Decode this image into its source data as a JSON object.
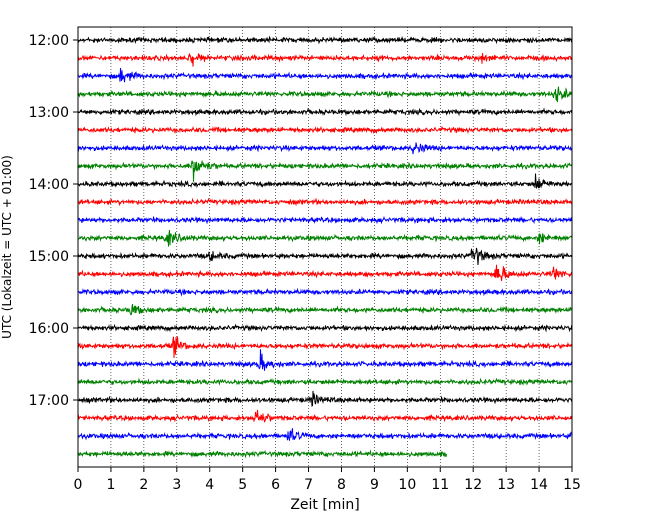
{
  "chart_data": {
    "type": "line",
    "title": "",
    "xlabel": "Zeit  [min]",
    "ylabel": "UTC (Lokalzeit = UTC + 01:00)",
    "xlim": [
      0,
      15
    ],
    "x_ticks": [
      "0",
      "1",
      "2",
      "3",
      "4",
      "5",
      "6",
      "7",
      "8",
      "9",
      "10",
      "11",
      "12",
      "13",
      "14",
      "15"
    ],
    "y_tick_labels": [
      "12:00",
      "13:00",
      "14:00",
      "15:00",
      "16:00",
      "17:00"
    ],
    "grid": "vertical dotted lines at every minute",
    "legend": "none",
    "trace_interval_minutes": 15,
    "trace_colors": [
      "#000000",
      "#ff0000",
      "#0000ff",
      "#008000"
    ],
    "traces": [
      {
        "start": "12:00",
        "color": "#000000",
        "end_min": 15,
        "events": []
      },
      {
        "start": "12:15",
        "color": "#ff0000",
        "end_min": 15,
        "events": [
          [
            3.4,
            7
          ],
          [
            12.2,
            4
          ]
        ]
      },
      {
        "start": "12:30",
        "color": "#0000ff",
        "end_min": 15,
        "events": [
          [
            1.3,
            8
          ]
        ]
      },
      {
        "start": "12:45",
        "color": "#008000",
        "end_min": 15,
        "events": [
          [
            14.5,
            9
          ]
        ]
      },
      {
        "start": "13:00",
        "color": "#000000",
        "end_min": 15,
        "events": []
      },
      {
        "start": "13:15",
        "color": "#ff0000",
        "end_min": 15,
        "events": []
      },
      {
        "start": "13:30",
        "color": "#0000ff",
        "end_min": 15,
        "events": [
          [
            10.2,
            7
          ]
        ]
      },
      {
        "start": "13:45",
        "color": "#008000",
        "end_min": 15,
        "events": [
          [
            3.5,
            16
          ]
        ]
      },
      {
        "start": "14:00",
        "color": "#000000",
        "end_min": 15,
        "events": [
          [
            13.9,
            8
          ]
        ]
      },
      {
        "start": "14:15",
        "color": "#ff0000",
        "end_min": 15,
        "events": []
      },
      {
        "start": "14:30",
        "color": "#0000ff",
        "end_min": 15,
        "events": []
      },
      {
        "start": "14:45",
        "color": "#008000",
        "end_min": 15,
        "events": [
          [
            2.7,
            9
          ],
          [
            14.0,
            5
          ]
        ]
      },
      {
        "start": "15:00",
        "color": "#000000",
        "end_min": 15,
        "events": [
          [
            12.0,
            11
          ],
          [
            4.0,
            4
          ]
        ]
      },
      {
        "start": "15:15",
        "color": "#ff0000",
        "end_min": 15,
        "events": [
          [
            12.7,
            13
          ],
          [
            14.4,
            7
          ]
        ]
      },
      {
        "start": "15:30",
        "color": "#0000ff",
        "end_min": 15,
        "events": []
      },
      {
        "start": "15:45",
        "color": "#008000",
        "end_min": 15,
        "events": [
          [
            1.6,
            5
          ]
        ]
      },
      {
        "start": "16:00",
        "color": "#000000",
        "end_min": 15,
        "events": []
      },
      {
        "start": "16:15",
        "color": "#ff0000",
        "end_min": 15,
        "events": [
          [
            2.9,
            9
          ]
        ]
      },
      {
        "start": "16:30",
        "color": "#0000ff",
        "end_min": 15,
        "events": [
          [
            5.5,
            10
          ]
        ]
      },
      {
        "start": "16:45",
        "color": "#008000",
        "end_min": 15,
        "events": []
      },
      {
        "start": "17:00",
        "color": "#000000",
        "end_min": 15,
        "events": [
          [
            7.1,
            6
          ]
        ]
      },
      {
        "start": "17:15",
        "color": "#ff0000",
        "end_min": 15,
        "events": [
          [
            5.4,
            10
          ]
        ]
      },
      {
        "start": "17:30",
        "color": "#0000ff",
        "end_min": 15,
        "events": [
          [
            6.4,
            7
          ],
          [
            15.0,
            6
          ]
        ]
      },
      {
        "start": "17:45",
        "color": "#008000",
        "end_min": 11.2,
        "events": []
      }
    ]
  }
}
